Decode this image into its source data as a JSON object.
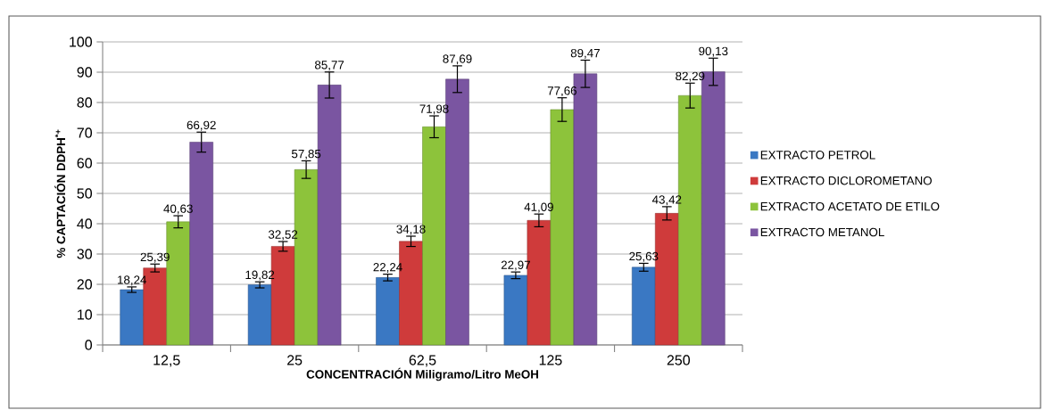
{
  "chart_data": {
    "type": "bar",
    "xlabel": "CONCENTRACIÓN Miligramo/Litro MeOH",
    "ylabel": "% CAPTACIÓN DDPH$^{*+}$",
    "categories": [
      "12,5",
      "25",
      "62,5",
      "125",
      "250"
    ],
    "ylim": [
      0,
      100
    ],
    "yticks": [
      0,
      10,
      20,
      30,
      40,
      50,
      60,
      70,
      80,
      90,
      100
    ],
    "grid": "y",
    "legend": "right",
    "series": [
      {
        "name": "EXTRACTO PETROL",
        "color": "#3a78c3",
        "values": [
          18.24,
          19.82,
          22.24,
          22.97,
          25.63
        ],
        "errors": [
          0.9,
          1.0,
          1.1,
          1.1,
          1.3
        ],
        "value_labels": [
          "18,24",
          "19,82",
          "22,24",
          "22,97",
          "25,63"
        ]
      },
      {
        "name": "EXTRACTO DICLOROMETANO",
        "color": "#cf3b3b",
        "values": [
          25.39,
          32.52,
          34.18,
          41.09,
          43.42
        ],
        "errors": [
          1.3,
          1.6,
          1.7,
          2.1,
          2.2
        ],
        "value_labels": [
          "25,39",
          "32,52",
          "34,18",
          "41,09",
          "43,42"
        ]
      },
      {
        "name": "EXTRACTO ACETATO DE ETILO",
        "color": "#8dc33b",
        "values": [
          40.63,
          57.85,
          71.98,
          77.66,
          82.29
        ],
        "errors": [
          2.0,
          2.9,
          3.6,
          3.9,
          4.1
        ],
        "value_labels": [
          "40,63",
          "57,85",
          "71,98",
          "77,66",
          "82,29"
        ]
      },
      {
        "name": "EXTRACTO METANOL",
        "color": "#7a55a1",
        "values": [
          66.92,
          85.77,
          87.69,
          89.47,
          90.13
        ],
        "errors": [
          3.3,
          4.3,
          4.4,
          4.5,
          4.5
        ],
        "value_labels": [
          "66,92",
          "85,77",
          "87,69",
          "89,47",
          "90,13"
        ]
      }
    ]
  }
}
